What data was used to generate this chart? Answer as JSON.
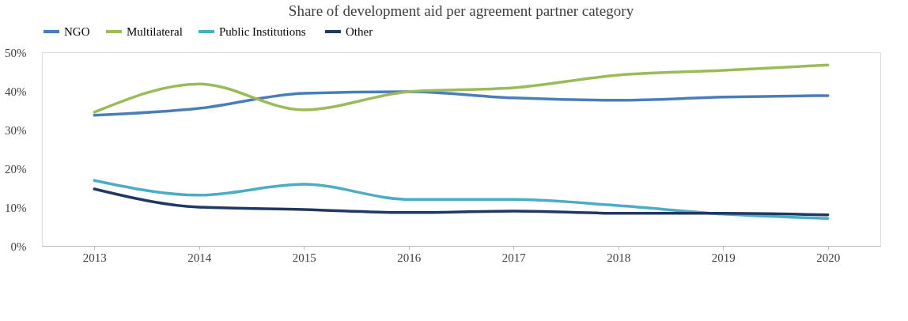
{
  "chart_data": {
    "type": "line",
    "title": "Share of development aid per agreement partner category",
    "categories": [
      "2013",
      "2014",
      "2015",
      "2016",
      "2017",
      "2018",
      "2019",
      "2020"
    ],
    "series": [
      {
        "name": "NGO",
        "color": "#4a7ebb",
        "values": [
          33.7,
          35.5,
          39.4,
          39.8,
          38.2,
          37.6,
          38.4,
          38.8
        ]
      },
      {
        "name": "Multilateral",
        "color": "#9bbb59",
        "values": [
          34.5,
          41.8,
          35.1,
          39.8,
          40.8,
          44.1,
          45.3,
          46.7
        ]
      },
      {
        "name": "Public  Institutions",
        "color": "#4bacc6",
        "values": [
          16.9,
          13.1,
          15.9,
          12.0,
          12.0,
          10.4,
          8.2,
          7.1
        ]
      },
      {
        "name": "Other",
        "color": "#1f3864",
        "values": [
          14.7,
          10.0,
          9.4,
          8.6,
          9.0,
          8.4,
          8.4,
          8.0
        ]
      }
    ],
    "ylim": [
      0,
      50
    ],
    "yticks": [
      {
        "value": 0,
        "label": "0%"
      },
      {
        "value": 10,
        "label": "10%"
      },
      {
        "value": 20,
        "label": "20%"
      },
      {
        "value": 30,
        "label": "30%"
      },
      {
        "value": 40,
        "label": "40%"
      },
      {
        "value": 50,
        "label": "50%"
      }
    ],
    "legend": "top",
    "grid": false,
    "marker": "none",
    "line_style": "solid"
  }
}
